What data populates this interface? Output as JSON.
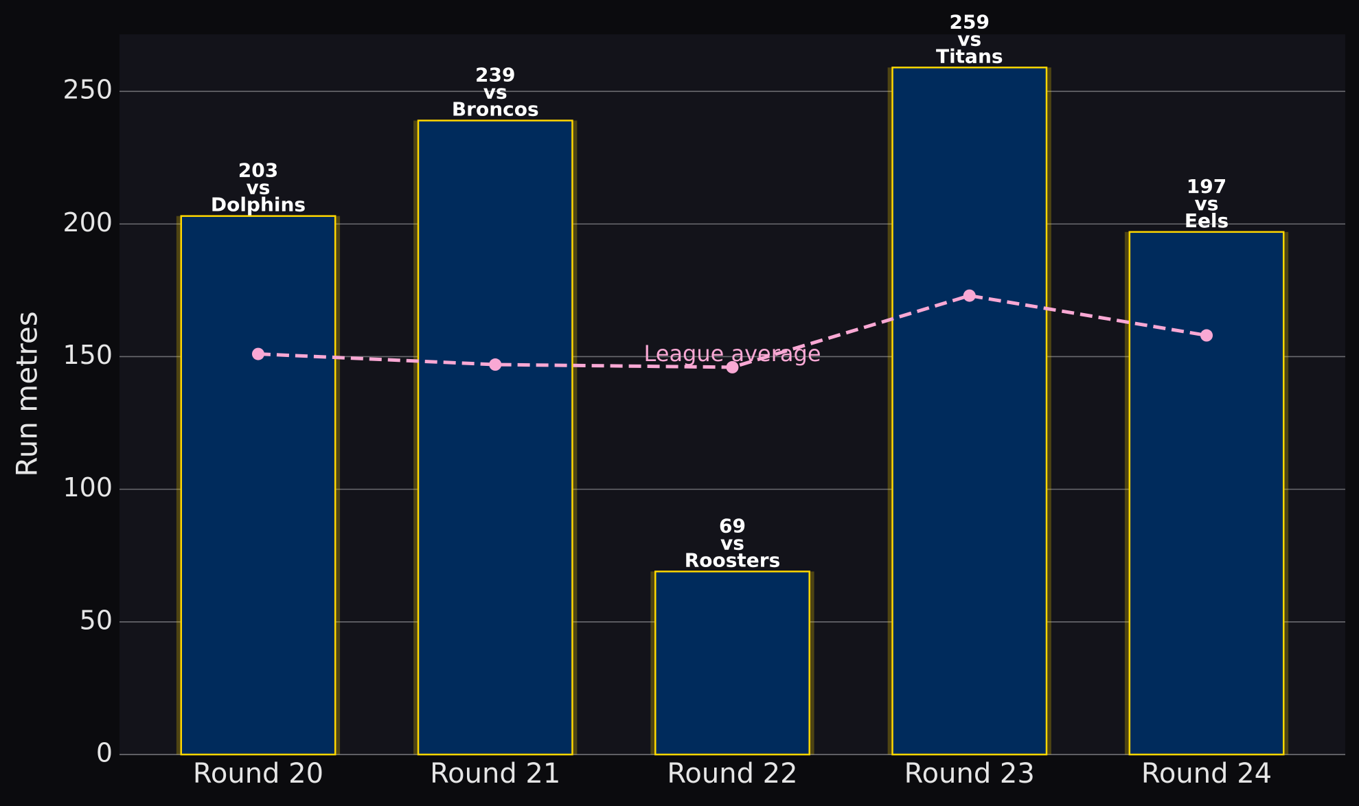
{
  "chart_data": {
    "type": "bar",
    "y_label": "Run metres",
    "categories": [
      "Round 20",
      "Round 21",
      "Round 22",
      "Round 23",
      "Round 24"
    ],
    "values": [
      203,
      239,
      69,
      259,
      197
    ],
    "value_labels": [
      "203\nvs\nDolphins",
      "239\nvs\nBroncos",
      "69\nvs\nRoosters",
      "259\nvs\nTitans",
      "197\nvs\nEels"
    ],
    "color": "#002b5c",
    "edgecolor": "#ffd700",
    "line": {
      "name": "League average",
      "values": [
        151,
        147,
        146,
        173,
        158
      ],
      "color": "#f9a8d4"
    },
    "ylim": [
      0,
      271.5
    ],
    "yticks": [
      0,
      50,
      100,
      150,
      200,
      250
    ],
    "grid": true
  }
}
